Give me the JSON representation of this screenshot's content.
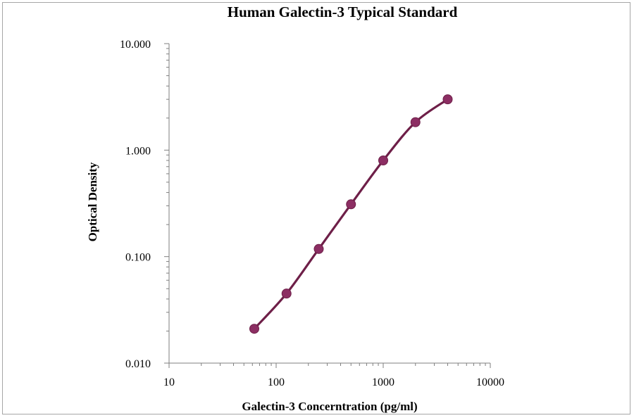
{
  "chart_data": {
    "type": "line",
    "title": "Human Galectin-3 Typical Standard",
    "xlabel": "Galectin-3 Concerntration (pg/ml)",
    "ylabel": "Optical Density",
    "x_scale": "log",
    "y_scale": "log",
    "xlim": [
      10,
      10000
    ],
    "ylim": [
      0.01,
      10
    ],
    "x_ticks": [
      "10",
      "100",
      "1000",
      "10000"
    ],
    "y_ticks": [
      "0.010",
      "0.100",
      "1.000",
      "10.000"
    ],
    "grid": false,
    "legend": "none",
    "series": [
      {
        "x": [
          62.5,
          125,
          250,
          500,
          1000,
          2000,
          4000
        ],
        "y": [
          0.021,
          0.045,
          0.118,
          0.31,
          0.8,
          1.83,
          3.0
        ]
      }
    ]
  },
  "colors": {
    "line": "#6e1f48",
    "marker": "#8c2e63",
    "axis": "#7f7f7f"
  }
}
